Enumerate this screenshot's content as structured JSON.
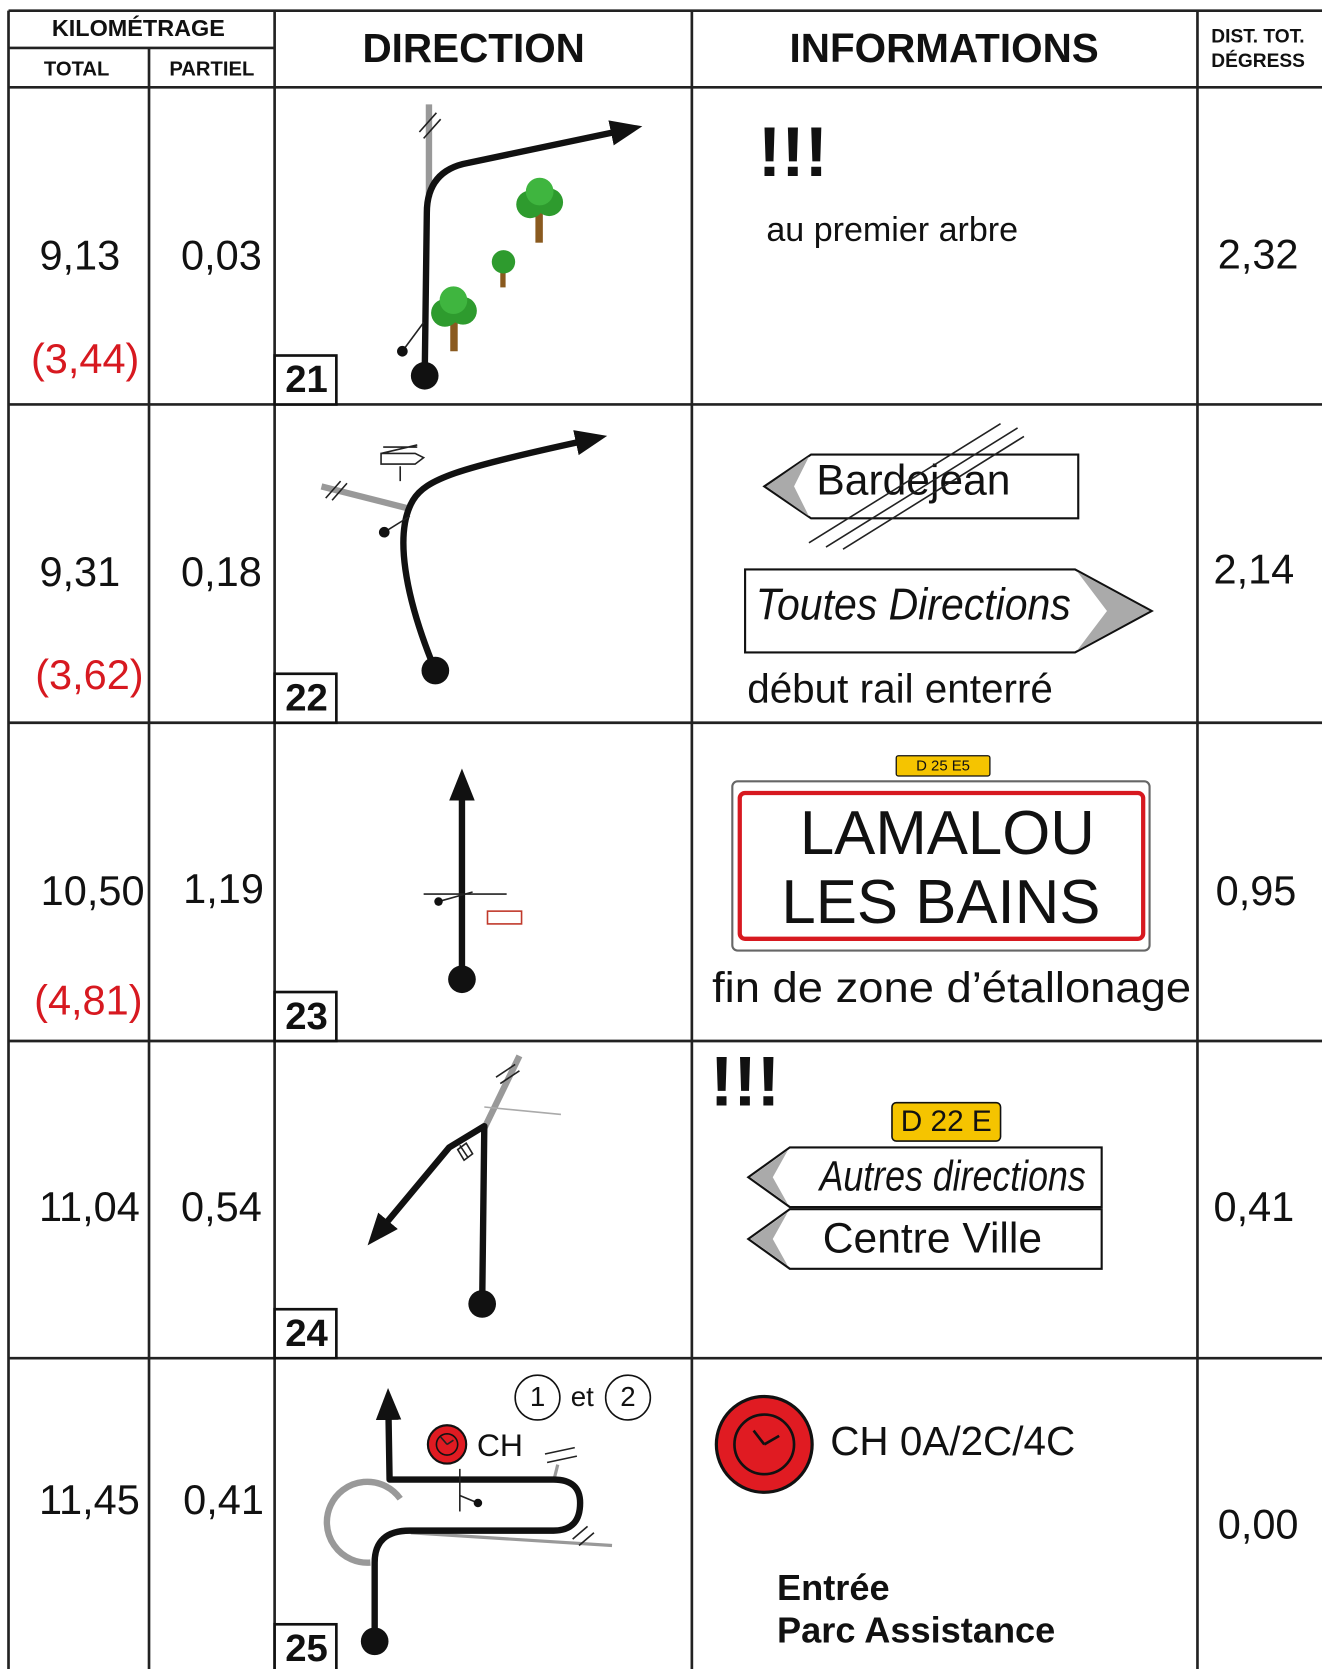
{
  "header": {
    "kilometrage": "KILOMÉTRAGE",
    "total": "TOTAL",
    "partiel": "PARTIEL",
    "direction": "DIRECTION",
    "informations": "INFORMATIONS",
    "dist_line1": "DIST. TOT.",
    "dist_line2": "DÉGRESS"
  },
  "rows": [
    {
      "total": "9,13",
      "total_alt": "(3,44)",
      "partial": "0,03",
      "number": "21",
      "dist": "2,32",
      "info": {
        "warning": "!!!",
        "note": "au premier arbre"
      }
    },
    {
      "total": "9,31",
      "total_alt": "(3,62)",
      "partial": "0,18",
      "number": "22",
      "dist": "2,14",
      "info": {
        "sign_crossed": "Bardejean",
        "sign": "Toutes Directions",
        "note": "début rail enterré"
      }
    },
    {
      "total": "10,50",
      "total_alt": "(4,81)",
      "partial": "1,19",
      "number": "23",
      "dist": "0,95",
      "info": {
        "road_code": "D 25 E5",
        "town_line1": "LAMALOU",
        "town_line2": "LES BAINS",
        "note": "fin de zone d’étallonage"
      }
    },
    {
      "total": "11,04",
      "partial": "0,54",
      "number": "24",
      "dist": "0,41",
      "info": {
        "warning": "!!!",
        "road_code": "D 22 E",
        "sign1": "Autres directions",
        "sign2": "Centre Ville"
      }
    },
    {
      "total": "11,45",
      "partial": "0,41",
      "number": "25",
      "dist": "0,00",
      "diagram": {
        "ref1": "1",
        "ref_joiner": "et",
        "ref2": "2",
        "control": "CH"
      },
      "info": {
        "control": "CH 0A/2C/4C",
        "note_line1": "Entrée",
        "note_line2": "Parc Assistance"
      }
    }
  ]
}
